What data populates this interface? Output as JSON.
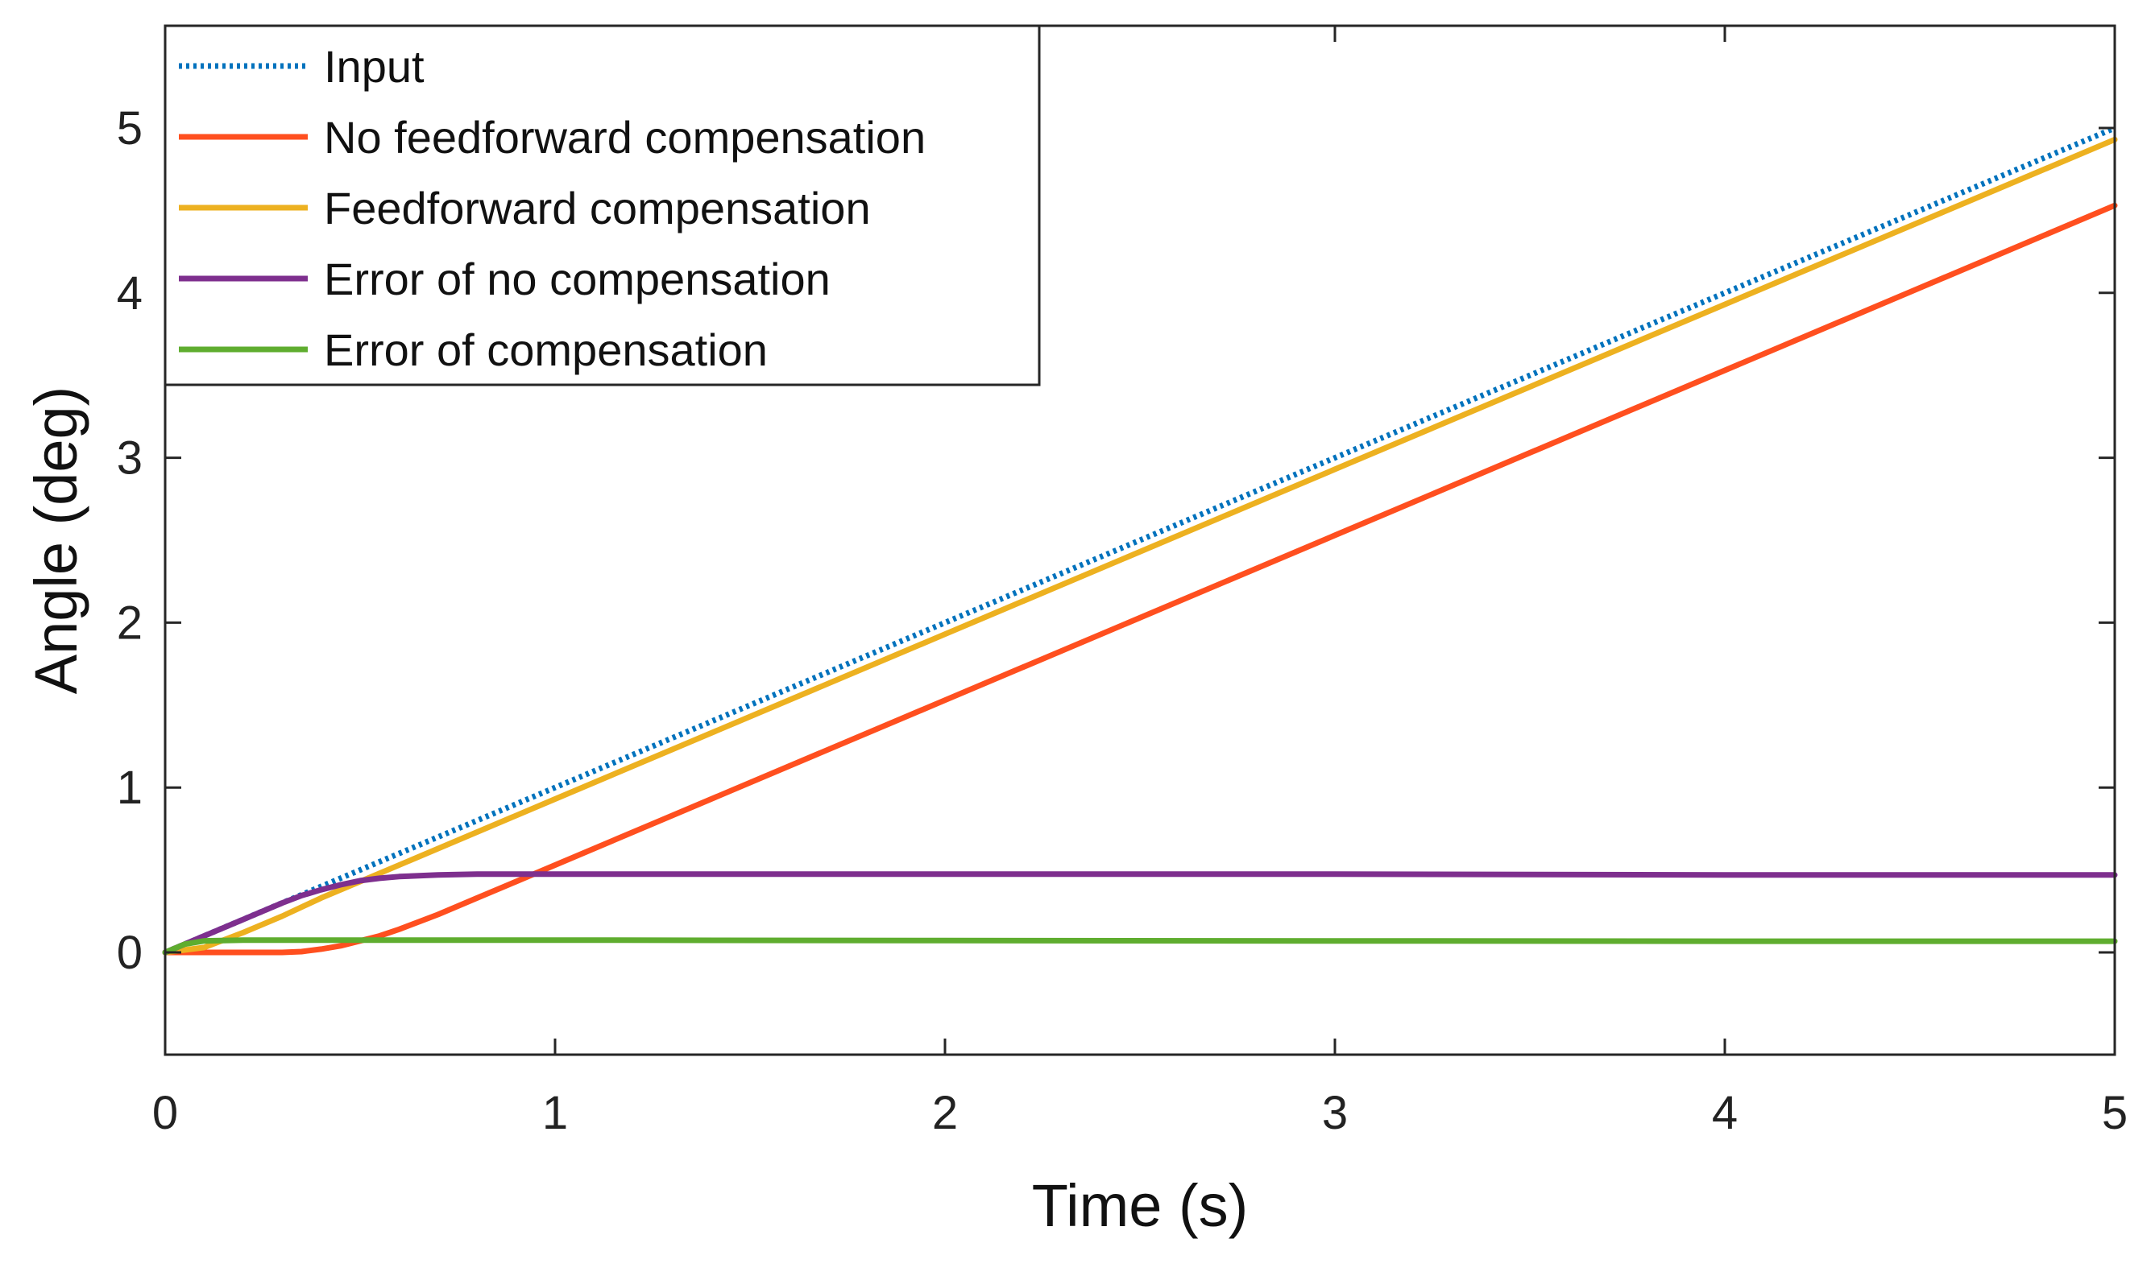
{
  "chart_data": {
    "type": "line",
    "title": "",
    "xlabel": "Time (s)",
    "ylabel": "Angle (deg)",
    "xlim": [
      0,
      5
    ],
    "ylim": [
      -0.62,
      5.62
    ],
    "xticks": [
      0,
      1,
      2,
      3,
      4,
      5
    ],
    "yticks": [
      0,
      1,
      2,
      3,
      4,
      5
    ],
    "xtick_labels": [
      "0",
      "1",
      "2",
      "3",
      "4",
      "5"
    ],
    "ytick_labels": [
      "0",
      "1",
      "2",
      "3",
      "4",
      "5"
    ],
    "grid": false,
    "legend_location": "top-left",
    "series": [
      {
        "name": "Input",
        "color": "#0072BD",
        "style": "dotted",
        "x": [
          0,
          5
        ],
        "y": [
          0,
          5
        ]
      },
      {
        "name": "No feedforward compensation",
        "color": "#FF4F1F",
        "style": "solid",
        "x": [
          0,
          0.3,
          0.35,
          0.4,
          0.45,
          0.5,
          0.55,
          0.6,
          0.7,
          0.8,
          0.9,
          1,
          2,
          3,
          4,
          5
        ],
        "y": [
          0,
          0,
          0.005,
          0.02,
          0.04,
          0.07,
          0.1,
          0.14,
          0.23,
          0.33,
          0.43,
          0.53,
          1.53,
          2.53,
          3.53,
          4.53
        ]
      },
      {
        "name": "Feedforward compensation",
        "color": "#EDB120",
        "style": "solid",
        "x": [
          0,
          0.1,
          0.2,
          0.3,
          0.4,
          0.5,
          1,
          2,
          3,
          4,
          5
        ],
        "y": [
          0,
          0.03,
          0.12,
          0.22,
          0.33,
          0.43,
          0.93,
          1.93,
          2.93,
          3.93,
          4.93
        ]
      },
      {
        "name": "Error of no compensation",
        "color": "#7E2F8E",
        "style": "solid",
        "x": [
          0,
          0.1,
          0.2,
          0.3,
          0.35,
          0.4,
          0.45,
          0.5,
          0.55,
          0.6,
          0.7,
          0.8,
          1,
          2,
          3,
          4,
          5
        ],
        "y": [
          0,
          0.1,
          0.2,
          0.3,
          0.345,
          0.38,
          0.41,
          0.435,
          0.45,
          0.46,
          0.47,
          0.475,
          0.475,
          0.475,
          0.475,
          0.47,
          0.47
        ]
      },
      {
        "name": "Error of compensation",
        "color": "#5FAD2F",
        "style": "solid",
        "x": [
          0,
          0.05,
          0.1,
          0.2,
          0.5,
          1,
          2,
          3,
          4,
          5
        ],
        "y": [
          0,
          0.05,
          0.07,
          0.075,
          0.075,
          0.075,
          0.072,
          0.07,
          0.068,
          0.068
        ]
      }
    ]
  }
}
